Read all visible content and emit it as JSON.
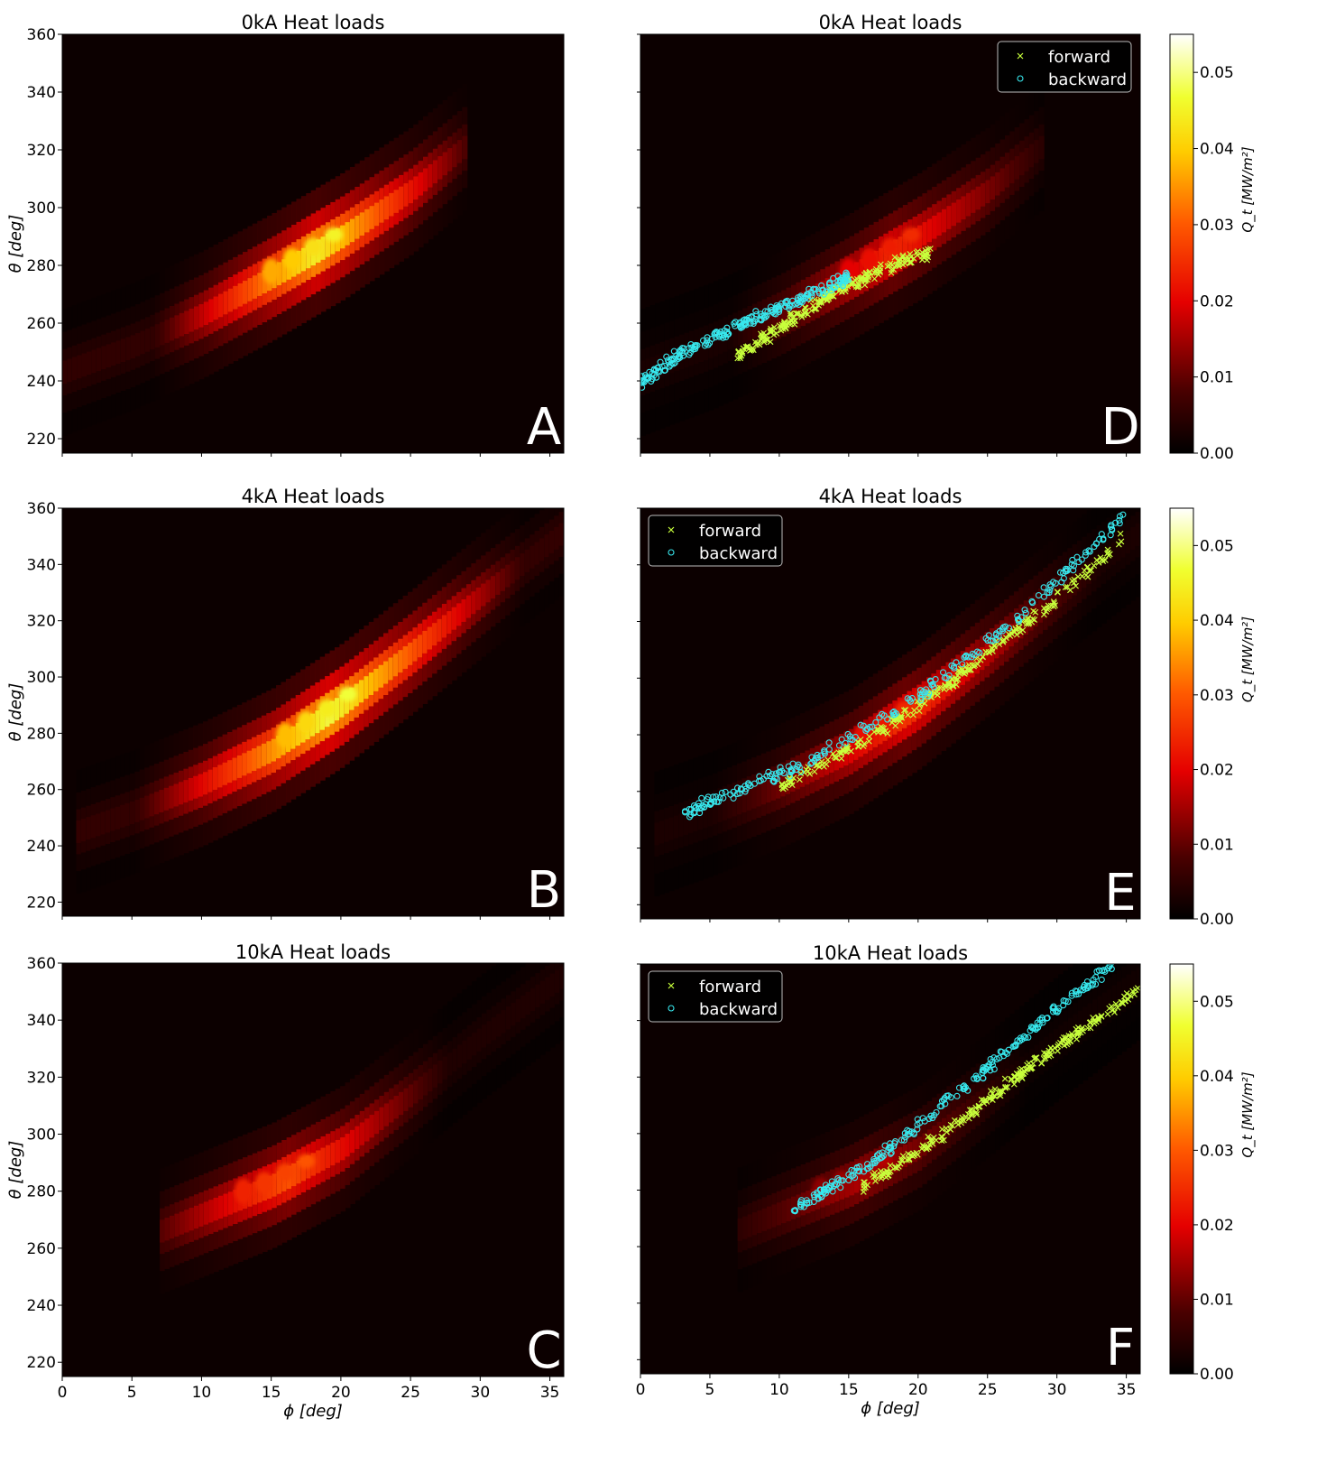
{
  "figure": {
    "colorbar": {
      "label": "Q_t [MW/m²]",
      "ticks": [
        "0.00",
        "0.01",
        "0.02",
        "0.03",
        "0.04",
        "0.05"
      ],
      "range": [
        0,
        0.055
      ],
      "colormap": "hot"
    }
  },
  "chart_data": [
    {
      "id": "A",
      "type": "heatmap",
      "title": "0kA Heat loads",
      "panel_label": "A",
      "xlabel": "",
      "ylabel": "θ [deg]",
      "xlim": [
        0,
        36
      ],
      "ylim": [
        215,
        360
      ],
      "xticks": [],
      "yticks": [
        "220",
        "240",
        "260",
        "280",
        "300",
        "320",
        "340",
        "360"
      ],
      "band": {
        "phi": [
          0,
          5,
          10,
          15,
          20,
          25,
          29
        ],
        "theta": [
          243,
          252,
          263,
          276,
          290,
          306,
          322
        ],
        "peak_phi": 18,
        "peak_theta": 280,
        "peak_value": 0.046
      }
    },
    {
      "id": "B",
      "type": "heatmap",
      "title": "4kA Heat loads",
      "panel_label": "B",
      "xlabel": "",
      "ylabel": "θ [deg]",
      "xlim": [
        0,
        36
      ],
      "ylim": [
        215,
        360
      ],
      "xticks": [],
      "yticks": [
        "220",
        "240",
        "260",
        "280",
        "300",
        "320",
        "340",
        "360"
      ],
      "band": {
        "phi": [
          1,
          5,
          10,
          15,
          20,
          25,
          30,
          36
        ],
        "theta": [
          245,
          252,
          262,
          274,
          290,
          309,
          329,
          352
        ],
        "peak_phi": 19,
        "peak_theta": 287,
        "peak_value": 0.048
      }
    },
    {
      "id": "C",
      "type": "heatmap",
      "title": "10kA Heat loads",
      "panel_label": "C",
      "xlabel": "ϕ [deg]",
      "ylabel": "θ [deg]",
      "xlim": [
        0,
        36
      ],
      "ylim": [
        215,
        360
      ],
      "xticks": [
        "0",
        "5",
        "10",
        "15",
        "20",
        "25",
        "30",
        "35"
      ],
      "yticks": [
        "220",
        "240",
        "260",
        "280",
        "300",
        "320",
        "340",
        "360"
      ],
      "band": {
        "phi": [
          7,
          10,
          15,
          20,
          25,
          30,
          36
        ],
        "theta": [
          266,
          272,
          282,
          295,
          314,
          334,
          356
        ],
        "peak_phi": 16,
        "peak_theta": 284,
        "peak_value": 0.03
      }
    },
    {
      "id": "D",
      "type": "scatter",
      "title": "0kA Heat loads",
      "panel_label": "D",
      "xlabel": "",
      "ylabel": "",
      "xlim": [
        0,
        36
      ],
      "ylim": [
        215,
        360
      ],
      "legend": {
        "placement": "top-right",
        "entries": [
          "forward",
          "backward"
        ]
      },
      "series": [
        {
          "name": "forward",
          "marker": "x",
          "color": "#c8ff3c",
          "phi_range": [
            7,
            21
          ],
          "theta": [
            249,
            260,
            271,
            279,
            285
          ]
        },
        {
          "name": "backward",
          "marker": "o",
          "color": "#38e8ee",
          "phi_range": [
            0,
            15
          ],
          "theta": [
            240,
            252,
            260,
            268,
            276
          ]
        }
      ]
    },
    {
      "id": "E",
      "type": "scatter",
      "title": "4kA Heat loads",
      "panel_label": "E",
      "xlabel": "",
      "ylabel": "",
      "xlim": [
        0,
        36
      ],
      "ylim": [
        215,
        360
      ],
      "legend": {
        "placement": "top-left",
        "entries": [
          "forward",
          "backward"
        ]
      },
      "series": [
        {
          "name": "forward",
          "marker": "x",
          "color": "#c8ff3c",
          "phi_range": [
            10,
            35
          ],
          "theta": [
            261,
            278,
            299,
            323,
            350
          ]
        },
        {
          "name": "backward",
          "marker": "o",
          "color": "#38e8ee",
          "phi_range": [
            3,
            35
          ],
          "theta": [
            252,
            268,
            290,
            320,
            358
          ]
        }
      ]
    },
    {
      "id": "F",
      "type": "scatter",
      "title": "10kA Heat loads",
      "panel_label": "F",
      "xlabel": "ϕ [deg]",
      "ylabel": "",
      "xlim": [
        0,
        36
      ],
      "ylim": [
        215,
        360
      ],
      "xticks": [
        "0",
        "5",
        "10",
        "15",
        "20",
        "25",
        "30",
        "35"
      ],
      "legend": {
        "placement": "top-left",
        "entries": [
          "forward",
          "backward"
        ]
      },
      "series": [
        {
          "name": "forward",
          "marker": "x",
          "color": "#c8ff3c",
          "phi_range": [
            16,
            36
          ],
          "theta": [
            281,
            297,
            316,
            334,
            351
          ]
        },
        {
          "name": "backward",
          "marker": "o",
          "color": "#38e8ee",
          "phi_range": [
            11,
            34
          ],
          "theta": [
            273,
            290,
            313,
            337,
            360
          ]
        }
      ]
    }
  ]
}
